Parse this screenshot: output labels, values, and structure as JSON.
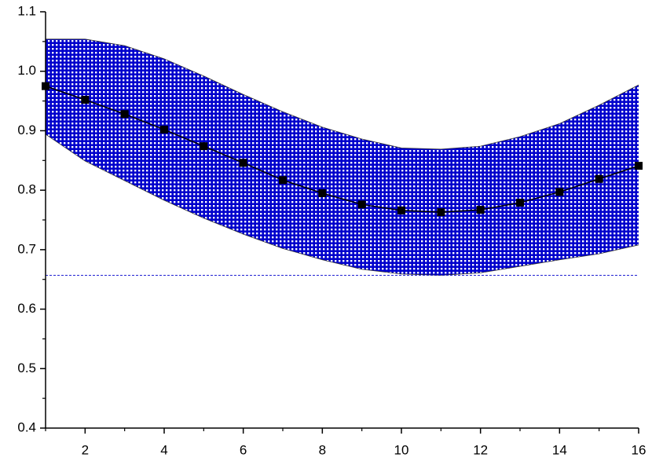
{
  "chart_data": {
    "type": "line",
    "x": [
      1,
      2,
      3,
      4,
      5,
      6,
      7,
      8,
      9,
      10,
      11,
      12,
      13,
      14,
      15,
      16
    ],
    "series": [
      {
        "color": "#000000",
        "values": [
          0.975,
          0.952,
          0.928,
          0.902,
          0.874,
          0.846,
          0.817,
          0.795,
          0.776,
          0.766,
          0.763,
          0.767,
          0.779,
          0.797,
          0.819,
          0.841
        ]
      }
    ],
    "band": {
      "color": "#0000cc",
      "upper": [
        1.054,
        1.054,
        1.043,
        1.021,
        0.992,
        0.961,
        0.932,
        0.906,
        0.886,
        0.871,
        0.869,
        0.874,
        0.89,
        0.912,
        0.943,
        0.977
      ],
      "lower": [
        0.894,
        0.849,
        0.816,
        0.783,
        0.753,
        0.726,
        0.702,
        0.683,
        0.667,
        0.659,
        0.657,
        0.661,
        0.672,
        0.683,
        0.693,
        0.708
      ]
    },
    "xlim": [
      1,
      16
    ],
    "ylim": [
      0.4,
      1.1
    ],
    "xticks": [
      2,
      4,
      6,
      8,
      10,
      12,
      14,
      16
    ],
    "xminorticks": [
      1,
      3,
      5,
      7,
      9,
      11,
      13,
      15
    ],
    "yticks": [
      0.4,
      0.5,
      0.6,
      0.7,
      0.8,
      0.9,
      {
        "value": 1,
        "label": "1.0"
      },
      1.1
    ],
    "yminorticks": [
      0.45,
      0.55,
      0.65,
      0.75,
      0.85,
      0.95,
      1.05
    ]
  }
}
